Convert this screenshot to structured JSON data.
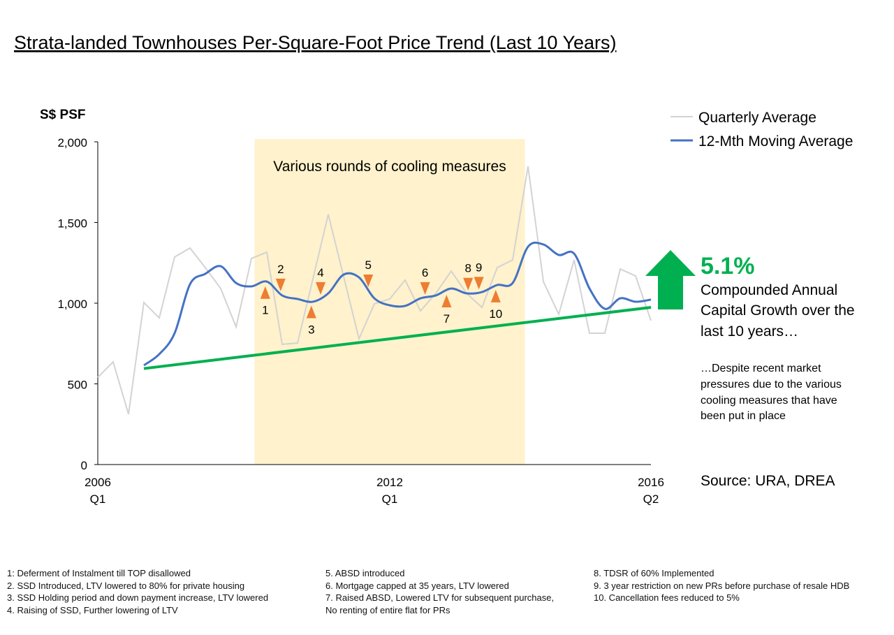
{
  "title": "Strata-landed Townhouses Per-Square-Foot Price Trend (Last 10 Years)",
  "colors": {
    "quarterly": "#d3d3d3",
    "moving_avg": "#4472c4",
    "trend": "#00b050",
    "shade": "#fff2cc",
    "marker": "#ed7d31",
    "growth": "#00b050"
  },
  "chart_data": {
    "type": "line",
    "ylabel": "S$ PSF",
    "ylim": [
      0,
      2000
    ],
    "yticks": [
      "0",
      "500",
      "1,000",
      "1,500",
      "2,000"
    ],
    "ytick_values": [
      0,
      500,
      1000,
      1500,
      2000
    ],
    "xlim": [
      0,
      36
    ],
    "xticks": [
      {
        "index": 0,
        "year": "2006",
        "quarter": "Q1"
      },
      {
        "index": 19,
        "year": "2012",
        "quarter": "Q1"
      },
      {
        "index": 36,
        "year": "2016",
        "quarter": "Q2"
      }
    ],
    "legend_position": "top-right",
    "series": [
      {
        "name": "Quarterly Average",
        "start_index": 0,
        "values": [
          540,
          636,
          312,
          1004,
          909,
          1286,
          1342,
          1220,
          1091,
          853,
          1277,
          1316,
          745,
          753,
          1150,
          1550,
          1165,
          779,
          996,
          1026,
          1143,
          952,
          1061,
          1199,
          1061,
          974,
          1221,
          1268,
          1848,
          1134,
          931,
          1268,
          814,
          814,
          1212,
          1169,
          892
        ]
      },
      {
        "name": "12-Mth Moving Average",
        "start_index": 3,
        "values": [
          615,
          684,
          814,
          1117,
          1182,
          1229,
          1125,
          1104,
          1134,
          1048,
          1026,
          1009,
          1061,
          1177,
          1160,
          1030,
          987,
          983,
          1030,
          1048,
          1091,
          1061,
          1069,
          1113,
          1125,
          1350,
          1364,
          1299,
          1307,
          1091,
          965,
          1030,
          1009,
          1022
        ]
      }
    ],
    "trend_line": {
      "from": {
        "index": 3,
        "value": 595
      },
      "to": {
        "index": 36,
        "value": 974
      }
    },
    "shaded_region": {
      "from_index": 10.2,
      "to_index": 27.8,
      "label": "Various rounds of cooling measures"
    },
    "markers": [
      {
        "label": "1",
        "index": 10.9,
        "direction": "up"
      },
      {
        "label": "2",
        "index": 11.9,
        "direction": "down"
      },
      {
        "label": "3",
        "index": 13.9,
        "direction": "up"
      },
      {
        "label": "4",
        "index": 14.5,
        "direction": "down"
      },
      {
        "label": "5",
        "index": 17.6,
        "direction": "down"
      },
      {
        "label": "6",
        "index": 21.3,
        "direction": "down"
      },
      {
        "label": "7",
        "index": 22.7,
        "direction": "up"
      },
      {
        "label": "8",
        "index": 24.1,
        "direction": "down"
      },
      {
        "label": "9",
        "index": 24.8,
        "direction": "down"
      },
      {
        "label": "10",
        "index": 25.9,
        "direction": "up"
      }
    ]
  },
  "growth": {
    "value": "5.1%",
    "lines": [
      "Compounded Annual",
      "Capital Growth over the",
      "last 10 years…"
    ],
    "note_lines": [
      "…Despite recent market",
      "pressures due to the various",
      "cooling measures that have",
      "been put in place"
    ]
  },
  "source": "Source: URA, DREA",
  "footnotes": {
    "col1": [
      "1: Deferment of Instalment till TOP disallowed",
      "2. SSD Introduced,  LTV lowered to 80% for private housing",
      "3. SSD Holding period and down payment increase, LTV lowered",
      "4. Raising of SSD, Further lowering of LTV"
    ],
    "col2": [
      "5. ABSD introduced",
      "6. Mortgage capped at 35 years, LTV lowered",
      "7. Raised ABSD, Lowered LTV for subsequent purchase,",
      "No renting of entire flat for PRs"
    ],
    "col3": [
      "8. TDSR of 60% Implemented",
      "9. 3 year restriction on new PRs before purchase of resale HDB",
      "10. Cancellation fees reduced to 5%"
    ]
  }
}
